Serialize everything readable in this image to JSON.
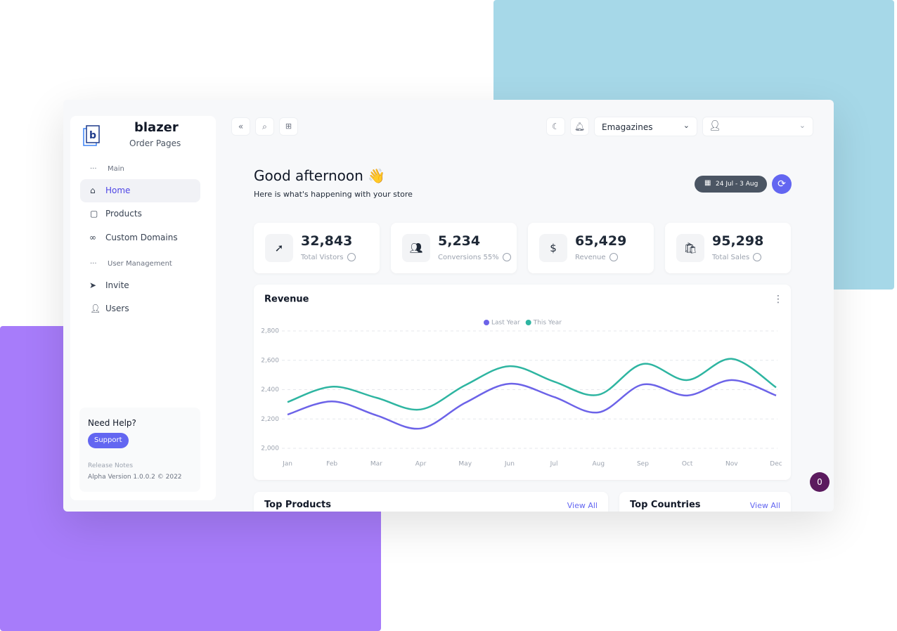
{
  "brand": {
    "name": "blazer",
    "subtitle": "Order Pages"
  },
  "sidebar": {
    "sections": [
      {
        "label": "Main",
        "items": [
          "Home",
          "Products",
          "Custom Domains"
        ]
      },
      {
        "label": "User Management",
        "items": [
          "Invite",
          "Users"
        ]
      }
    ],
    "help": {
      "title": "Need Help?",
      "button": "Support",
      "release_notes": "Release Notes",
      "version": "Alpha Version 1.0.0.2 © 2022"
    }
  },
  "topbar": {
    "store": "Emagazines"
  },
  "greeting": {
    "title": "Good afternoon 👋",
    "subtitle": "Here is what's happening with your store",
    "date_range": "24 Jul - 3 Aug"
  },
  "stats": [
    {
      "value": "32,843",
      "label": "Total Vistors"
    },
    {
      "value": "5,234",
      "label": "Conversions 55%"
    },
    {
      "value": "65,429",
      "label": "Revenue"
    },
    {
      "value": "95,298",
      "label": "Total Sales"
    }
  ],
  "chart_data": {
    "type": "line",
    "title": "Revenue",
    "categories": [
      "Jan",
      "Feb",
      "Mar",
      "Apr",
      "May",
      "Jun",
      "Jul",
      "Aug",
      "Sep",
      "Oct",
      "Nov",
      "Dec"
    ],
    "series": [
      {
        "name": "Last Year",
        "color": "#6c63e8",
        "values": [
          2230,
          2320,
          2225,
          2135,
          2310,
          2440,
          2350,
          2245,
          2435,
          2360,
          2465,
          2360
        ]
      },
      {
        "name": "This Year",
        "color": "#2eb5a1",
        "values": [
          2315,
          2420,
          2345,
          2265,
          2430,
          2560,
          2455,
          2365,
          2575,
          2465,
          2610,
          2415
        ]
      }
    ],
    "ylim": [
      2000,
      2800
    ],
    "yticks": [
      {
        "value": 2000,
        "label": "2,000"
      },
      {
        "value": 2200,
        "label": "2,200"
      },
      {
        "value": 2400,
        "label": "2,400"
      },
      {
        "value": 2600,
        "label": "2,600"
      },
      {
        "value": 2800,
        "label": "2,800"
      }
    ],
    "grid": true,
    "legend": "top"
  },
  "panels": [
    {
      "title": "Top Products",
      "link": "View All"
    },
    {
      "title": "Top Countries",
      "link": "View All"
    }
  ],
  "badge": "0"
}
